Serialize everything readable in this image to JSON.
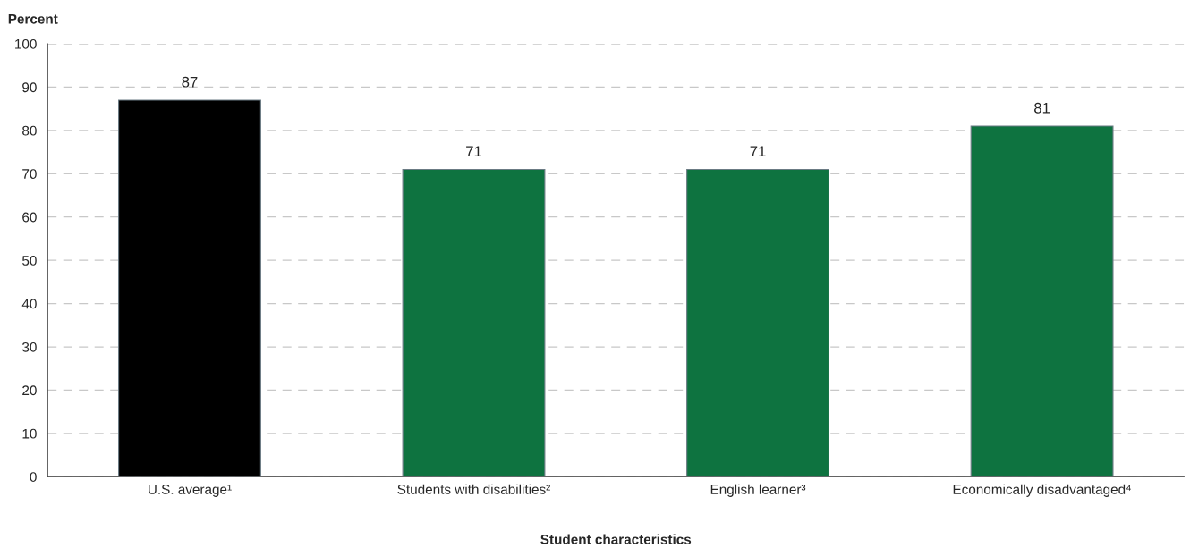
{
  "chart_data": {
    "type": "bar",
    "ylabel": "Percent",
    "xlabel": "Student characteristics",
    "categories": [
      "U.S. average¹",
      "Students with disabilities²",
      "English learner³",
      "Economically disadvantaged⁴"
    ],
    "values": [
      87,
      71,
      71,
      81
    ],
    "colors": [
      "#000000",
      "#0e7340",
      "#0e7340",
      "#0e7340"
    ],
    "ylim": [
      0,
      100
    ],
    "yticks": [
      0,
      10,
      20,
      30,
      40,
      50,
      60,
      70,
      80,
      90,
      100
    ],
    "grid": "y",
    "line_style": "dashed",
    "data_labels": true
  }
}
